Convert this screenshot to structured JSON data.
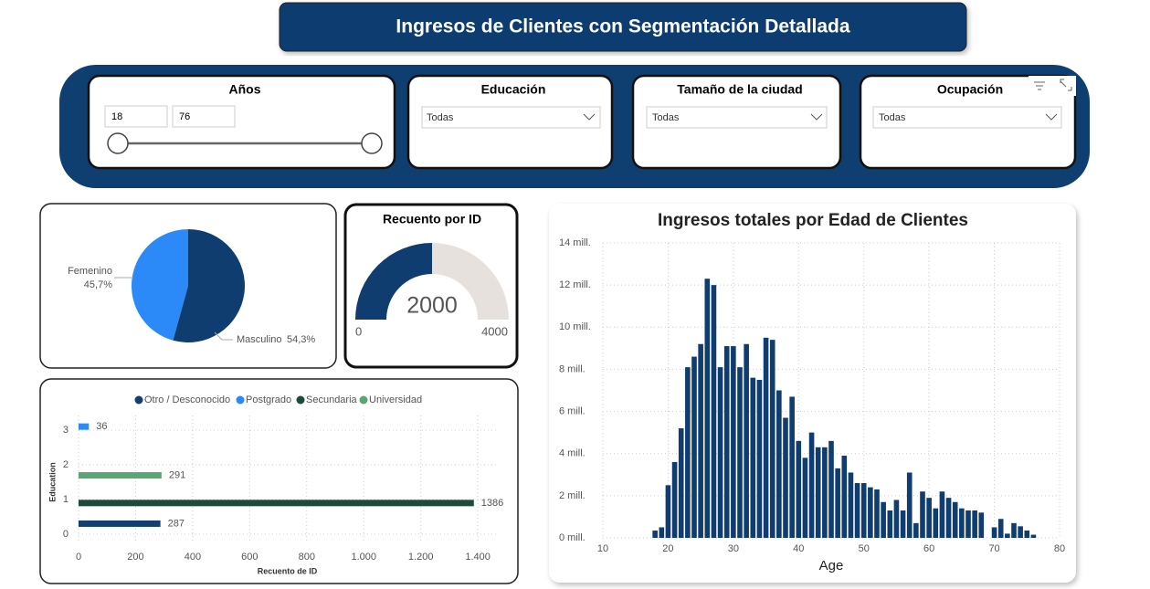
{
  "header": {
    "title": "Ingresos de Clientes con Segmentación Detallada"
  },
  "filters": [
    {
      "label": "Años",
      "min": "18",
      "max": "76"
    },
    {
      "label": "Educación",
      "value": "Todas"
    },
    {
      "label": "Tamaño de la ciudad",
      "value": "Todas"
    },
    {
      "label": "Ocupación",
      "value": "Todas"
    }
  ],
  "chart_data": [
    {
      "type": "pie",
      "categories": [
        "Femenino",
        "Masculino"
      ],
      "values": [
        45.7,
        54.3
      ],
      "value_labels": [
        "45,7%",
        "54,3%"
      ],
      "colors": [
        "#2b8af7",
        "#103d6f"
      ]
    },
    {
      "type": "gauge",
      "title": "Recuento por ID",
      "value": 2000,
      "min": 0,
      "max": 4000,
      "color": "#103d6f",
      "track_color": "#e6e1dc"
    },
    {
      "type": "hbar",
      "categories": [
        0,
        1,
        2,
        3
      ],
      "series": [
        {
          "name": "Otro / Desconocido",
          "color": "#123f70",
          "values": [
            287,
            null,
            null,
            null
          ]
        },
        {
          "name": "Postgrado",
          "color": "#2b8af7",
          "values": [
            null,
            null,
            null,
            36
          ]
        },
        {
          "name": "Secundaria",
          "color": "#1d4a3b",
          "values": [
            null,
            1386,
            null,
            null
          ]
        },
        {
          "name": "Universidad",
          "color": "#5aa673",
          "values": [
            null,
            null,
            291,
            null
          ]
        }
      ],
      "xlim": [
        0,
        1470
      ],
      "xticks": [
        0,
        200,
        400,
        600,
        800,
        {
          "value": 1000,
          "label": "1.000"
        },
        {
          "value": 1200,
          "label": "1.200"
        },
        {
          "value": 1400,
          "label": "1.400"
        }
      ],
      "xlabel": "Recuento de ID",
      "ylabel": "Education",
      "legend": "top",
      "grid": true
    },
    {
      "type": "bar",
      "title": "Ingresos totales por Edad de Clientes",
      "x": [
        18,
        19,
        20,
        21,
        22,
        23,
        24,
        25,
        26,
        27,
        28,
        29,
        30,
        31,
        32,
        33,
        34,
        35,
        36,
        37,
        38,
        39,
        40,
        41,
        42,
        43,
        44,
        45,
        46,
        47,
        48,
        49,
        50,
        51,
        52,
        53,
        54,
        55,
        56,
        57,
        58,
        59,
        60,
        61,
        62,
        63,
        64,
        65,
        66,
        67,
        68,
        70,
        71,
        72,
        73,
        74,
        75,
        76
      ],
      "values": [
        0.35,
        0.5,
        2.5,
        3.6,
        5.2,
        8.1,
        8.6,
        9.2,
        12.3,
        12.0,
        8.1,
        9.1,
        9.1,
        8.1,
        9.2,
        7.6,
        7.5,
        9.5,
        9.4,
        7.0,
        5.7,
        6.7,
        4.6,
        3.8,
        5.0,
        4.3,
        4.3,
        4.6,
        3.3,
        3.9,
        3.1,
        2.6,
        2.6,
        2.4,
        2.3,
        1.7,
        1.3,
        1.8,
        1.3,
        3.1,
        0.7,
        2.2,
        1.9,
        1.4,
        2.2,
        1.9,
        1.7,
        1.4,
        1.3,
        1.3,
        1.2,
        0.5,
        0.9,
        0.2,
        0.7,
        0.55,
        0.35,
        0.15
      ],
      "color": "#103d6f",
      "xlim": [
        10,
        80
      ],
      "xticks": [
        10,
        20,
        30,
        40,
        50,
        60,
        70,
        80
      ],
      "ylim": [
        0,
        14
      ],
      "yticks": [
        {
          "value": 0,
          "label": "0 mill."
        },
        {
          "value": 2,
          "label": "2 mill."
        },
        {
          "value": 4,
          "label": "4 mill."
        },
        {
          "value": 6,
          "label": "6 mill."
        },
        {
          "value": 8,
          "label": "8 mill."
        },
        {
          "value": 10,
          "label": "10 mill."
        },
        {
          "value": 12,
          "label": "12 mill."
        },
        {
          "value": 14,
          "label": "14 mill."
        }
      ],
      "xlabel": "Age",
      "grid": true
    }
  ]
}
